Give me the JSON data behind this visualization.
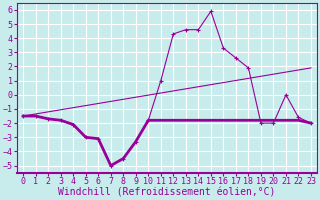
{
  "xlabel": "Windchill (Refroidissement éolien,°C)",
  "bg_color": "#c8ecec",
  "grid_color": "#ffffff",
  "line_color": "#990099",
  "xlim": [
    -0.5,
    23.5
  ],
  "ylim": [
    -5.5,
    6.5
  ],
  "yticks": [
    -5,
    -4,
    -3,
    -2,
    -1,
    0,
    1,
    2,
    3,
    4,
    5,
    6
  ],
  "xticks": [
    0,
    1,
    2,
    3,
    4,
    5,
    6,
    7,
    8,
    9,
    10,
    11,
    12,
    13,
    14,
    15,
    16,
    17,
    18,
    19,
    20,
    21,
    22,
    23
  ],
  "series1_x": [
    0,
    1,
    2,
    3,
    4,
    5,
    6,
    7,
    8,
    9,
    10,
    11,
    12,
    13,
    14,
    15,
    16,
    17,
    18,
    19,
    20,
    21,
    22,
    23
  ],
  "series1_y": [
    -1.5,
    -1.5,
    -1.7,
    -1.8,
    -2.1,
    -3.0,
    -3.1,
    -5.0,
    -4.5,
    -3.3,
    -1.8,
    -1.8,
    -1.8,
    -1.8,
    -1.8,
    -1.8,
    -1.8,
    -1.8,
    -1.8,
    -1.8,
    -1.8,
    -1.8,
    -1.8,
    -2.0
  ],
  "series2_x": [
    0,
    1,
    2,
    3,
    4,
    5,
    6,
    7,
    8,
    9,
    10,
    11,
    12,
    13,
    14,
    15,
    16,
    17,
    18,
    19,
    20,
    21,
    22,
    23
  ],
  "series2_y": [
    -1.5,
    -1.5,
    -1.7,
    -1.8,
    -2.1,
    -3.0,
    -3.1,
    -5.0,
    -4.5,
    -3.3,
    -1.8,
    1.0,
    4.3,
    4.6,
    4.6,
    5.9,
    3.3,
    2.6,
    1.9,
    -2.0,
    -2.0,
    0.0,
    -1.6,
    -2.0
  ],
  "trend_x": [
    0,
    23
  ],
  "trend_y": [
    -1.5,
    1.9
  ],
  "font_size_tick": 6,
  "font_size_label": 7,
  "marker": "+"
}
